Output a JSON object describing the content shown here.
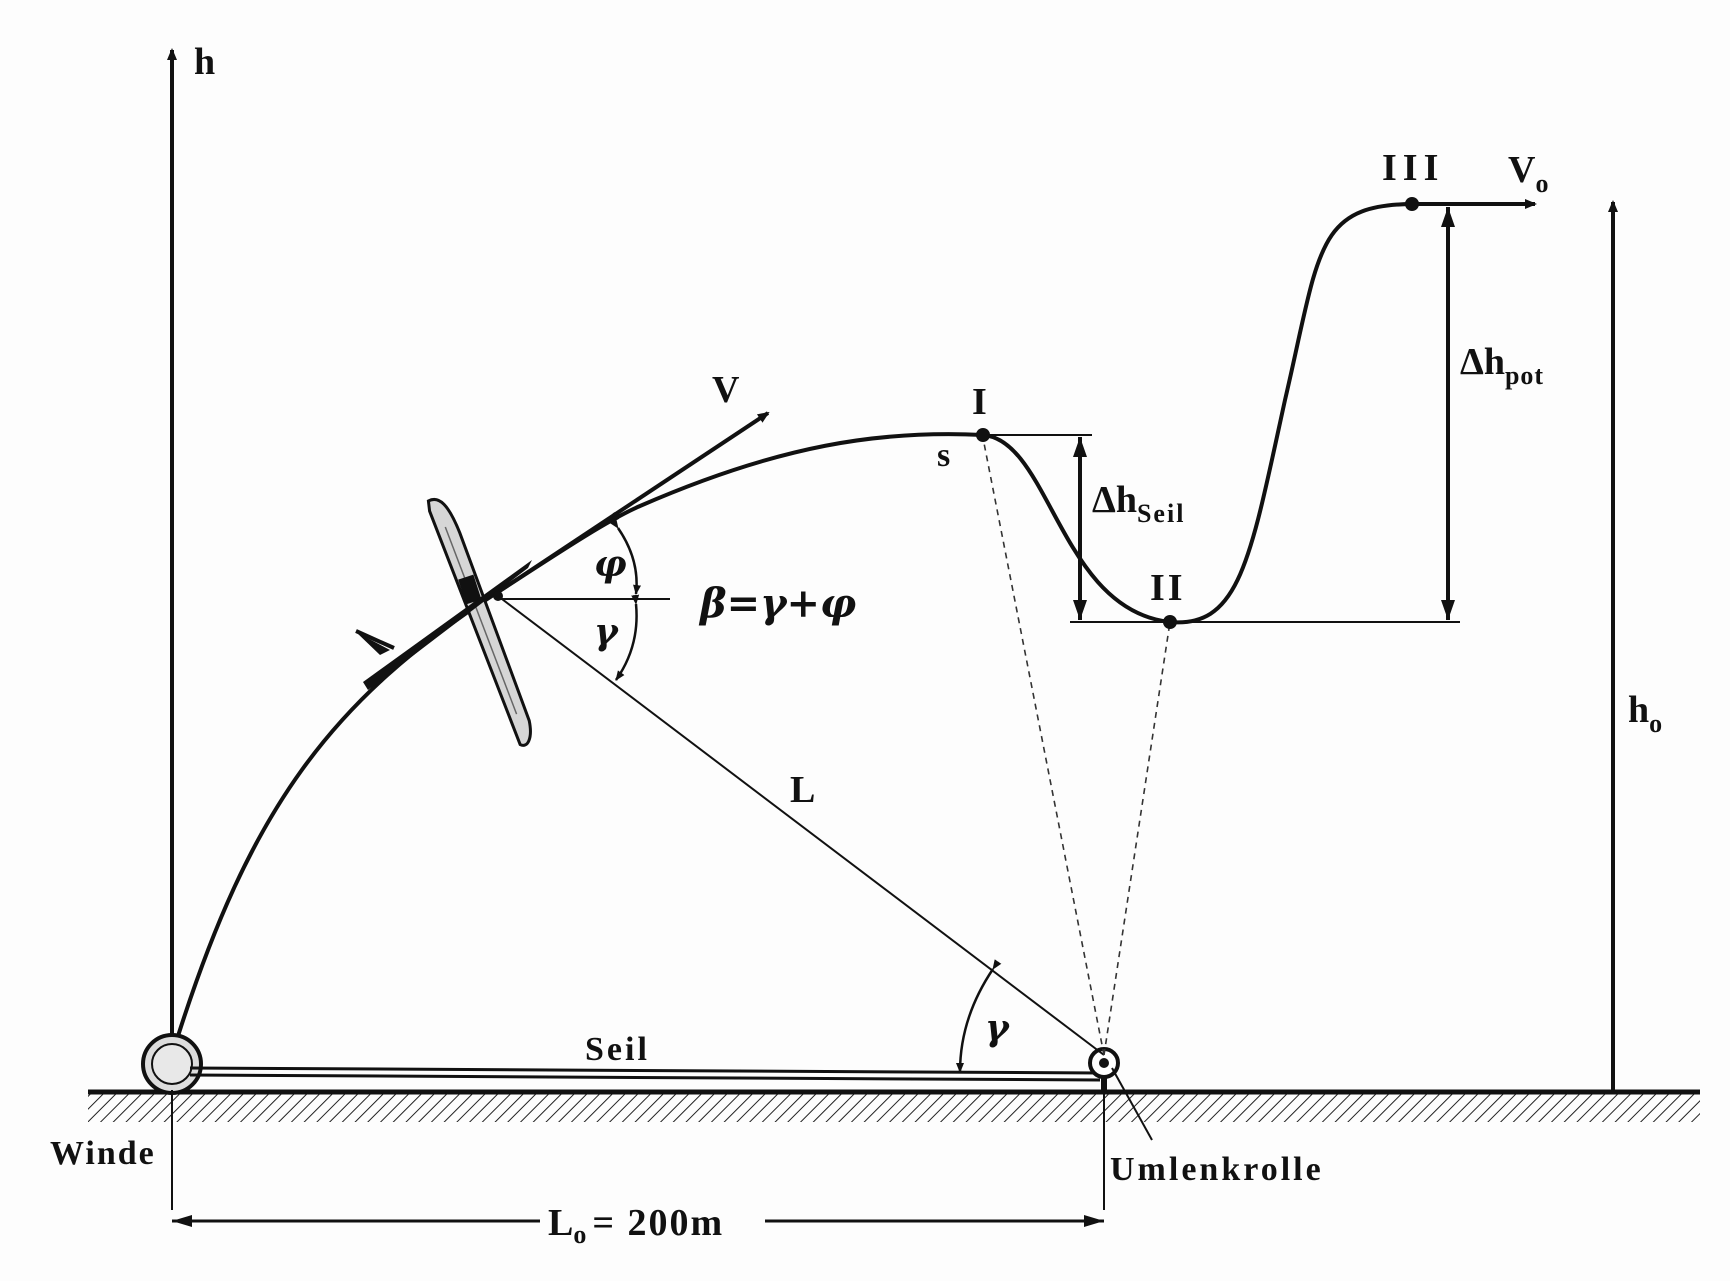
{
  "labels": {
    "h_axis": "h",
    "velocity": "V",
    "point_I": "I",
    "point_s": "s",
    "point_II": "II",
    "point_III": "III",
    "v0_main": "V",
    "v0_sub": "o",
    "dh_seil_main": "Δh",
    "dh_seil_sub": "Seil",
    "dh_pot_main": "Δh",
    "dh_pot_sub": "pot",
    "h0_main": "h",
    "h0_sub": "o",
    "phi": "φ",
    "gamma_upper": "γ",
    "beta_eq": "β=γ+φ",
    "rope_length": "L",
    "gamma_lower": "γ",
    "seil": "Seil",
    "winde": "Winde",
    "umlenkrolle": "Umlenkrolle",
    "l0_main": "L",
    "l0_sub": "o",
    "l0_value": "= 200m"
  },
  "colors": {
    "ink": "#111111",
    "glider_fill": "#d6d6d6",
    "background": "#fdfdfd"
  }
}
